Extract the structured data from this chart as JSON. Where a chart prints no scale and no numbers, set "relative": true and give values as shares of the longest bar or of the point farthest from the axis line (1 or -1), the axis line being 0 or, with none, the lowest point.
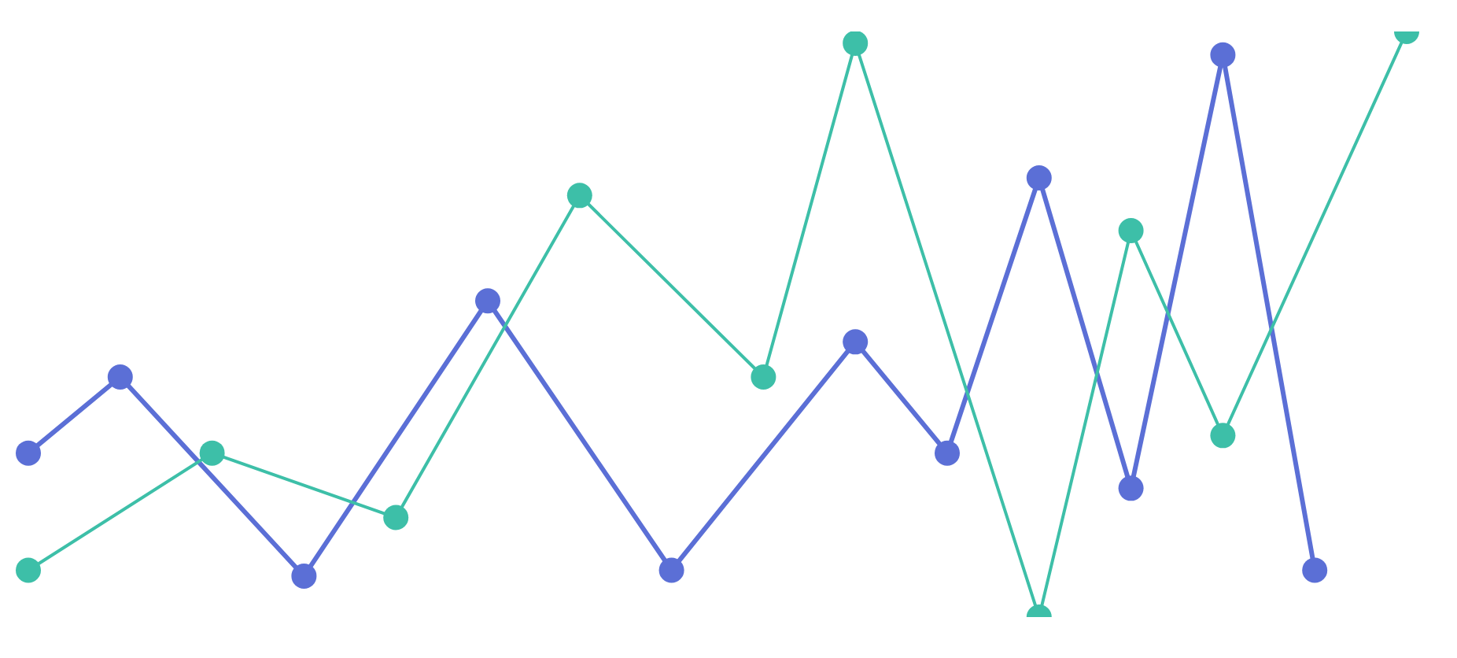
{
  "chart_data": {
    "type": "line",
    "relative": true,
    "marker": "circle",
    "line_style": "solid",
    "grid": false,
    "legend": false,
    "categories": [
      null,
      null,
      null,
      null,
      null,
      null,
      null,
      null,
      null,
      null,
      null,
      null,
      null,
      null,
      null,
      null
    ],
    "series": [
      {
        "color": "#5b6fd6",
        "values": [
          0.28,
          0.41,
          null,
          0.07,
          null,
          0.54,
          null,
          0.08,
          null,
          0.47,
          0.28,
          0.75,
          0.22,
          0.96,
          0.08,
          null
        ]
      },
      {
        "color": "#3dbfa8",
        "values": [
          0.08,
          null,
          0.28,
          null,
          0.17,
          null,
          0.72,
          null,
          0.41,
          0.98,
          null,
          0,
          0.66,
          0.31,
          null,
          1
        ]
      }
    ]
  }
}
